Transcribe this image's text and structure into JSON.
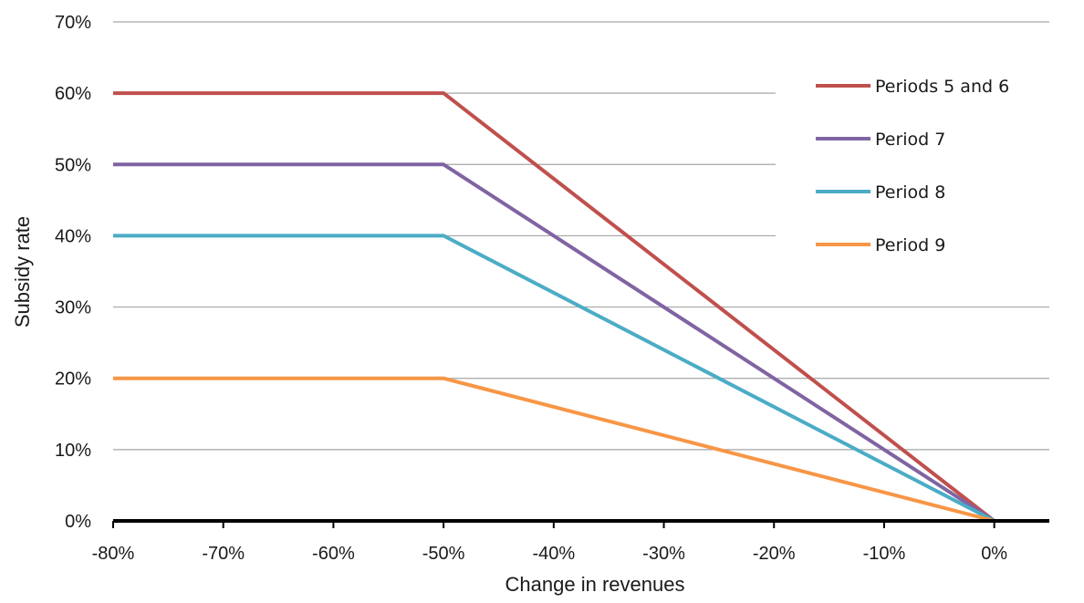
{
  "chart_data": {
    "type": "line",
    "title": "",
    "xlabel": "Change in revenues",
    "ylabel": "Subsidy rate",
    "xlim": [
      -80,
      5
    ],
    "ylim": [
      0,
      70
    ],
    "x_ticks": [
      -80,
      -70,
      -60,
      -50,
      -40,
      -30,
      -20,
      -10,
      0
    ],
    "x_tick_labels": [
      "-80%",
      "-70%",
      "-60%",
      "-50%",
      "-40%",
      "-30%",
      "-20%",
      "-10%",
      "0%"
    ],
    "y_ticks": [
      0,
      10,
      20,
      30,
      40,
      50,
      60,
      70
    ],
    "y_tick_labels": [
      "0%",
      "10%",
      "20%",
      "30%",
      "40%",
      "50%",
      "60%",
      "70%"
    ],
    "grid": "horizontal",
    "legend_position": "top-right",
    "series": [
      {
        "name": "Periods 5 and 6",
        "color": "#c0504d",
        "x": [
          -80,
          -50,
          0,
          5
        ],
        "y": [
          60,
          60,
          0,
          0
        ]
      },
      {
        "name": "Period 7",
        "color": "#8064a2",
        "x": [
          -80,
          -50,
          0,
          5
        ],
        "y": [
          50,
          50,
          0,
          0
        ]
      },
      {
        "name": "Period 8",
        "color": "#4bacc6",
        "x": [
          -80,
          -50,
          0,
          5
        ],
        "y": [
          40,
          40,
          0,
          0
        ]
      },
      {
        "name": "Period 9",
        "color": "#f79646",
        "x": [
          -80,
          -50,
          0,
          5
        ],
        "y": [
          20,
          20,
          0,
          0
        ]
      }
    ]
  }
}
